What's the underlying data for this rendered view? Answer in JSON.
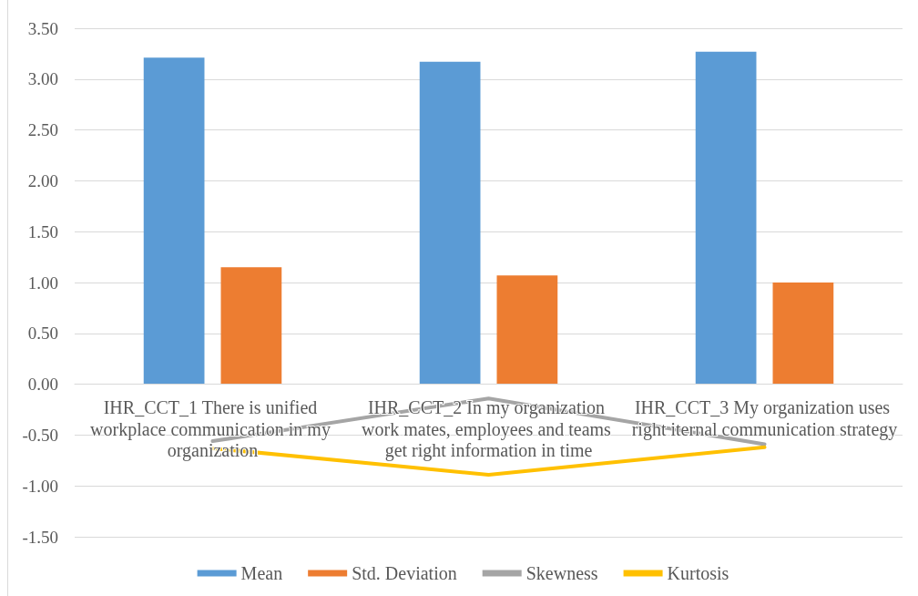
{
  "chart_data": {
    "type": "bar",
    "categories": [
      "IHR_CCT_1 There is unified workplace communication in my organization",
      "IHR_CCT_2 In my organization work mates, employees and teams get right information in time",
      "IHR_CCT_3 My organization uses right iternal communication strategy"
    ],
    "series": [
      {
        "name": "Mean",
        "color": "#5b9bd5",
        "values": [
          3.21,
          3.17,
          3.27
        ]
      },
      {
        "name": "Std. Deviation",
        "color": "#ed7d31",
        "values": [
          1.15,
          1.07,
          1.0
        ]
      },
      {
        "name": "Skewness",
        "type": "line",
        "color": "#a5a5a5",
        "values": [
          -0.56,
          -0.14,
          -0.59
        ]
      },
      {
        "name": "Kurtosis",
        "type": "line",
        "color": "#ffc000",
        "values": [
          -0.63,
          -0.89,
          -0.62
        ]
      }
    ],
    "ylim": [
      -1.5,
      3.5
    ],
    "yticks": [
      {
        "value": -1.5,
        "label": "-1.50"
      },
      {
        "value": -1,
        "label": "-1.00"
      },
      {
        "value": -0.5,
        "label": "-0.50"
      },
      {
        "value": 0,
        "label": "0.00"
      },
      {
        "value": 0.5,
        "label": "0.50"
      },
      {
        "value": 1,
        "label": "1.00"
      },
      {
        "value": 1.5,
        "label": "1.50"
      },
      {
        "value": 2,
        "label": "2.00"
      },
      {
        "value": 2.5,
        "label": "2.50"
      },
      {
        "value": 3,
        "label": "3.00"
      },
      {
        "value": 3.5,
        "label": "3.50"
      }
    ],
    "grid": "y",
    "legend": "bottom",
    "marker": "none"
  }
}
